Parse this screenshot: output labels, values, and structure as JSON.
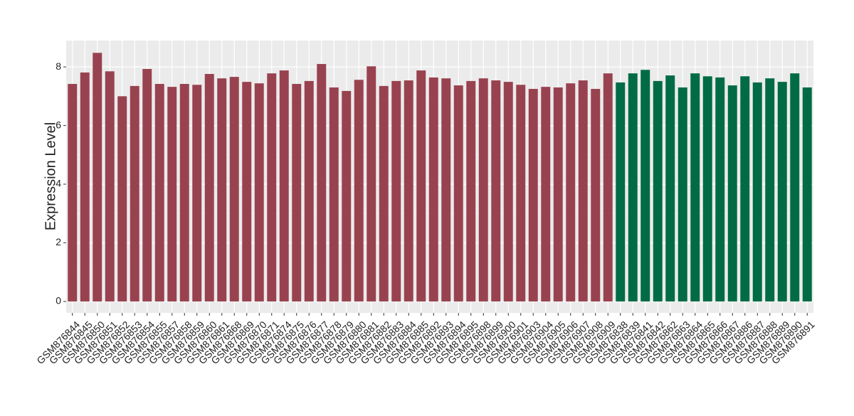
{
  "chart_data": {
    "type": "bar",
    "y_label": "Expression Level",
    "categories": [
      "GSM876844",
      "GSM876845",
      "GSM876850",
      "GSM876851",
      "GSM876852",
      "GSM876853",
      "GSM876854",
      "GSM876855",
      "GSM876857",
      "GSM876858",
      "GSM876859",
      "GSM876860",
      "GSM876861",
      "GSM876868",
      "GSM876869",
      "GSM876870",
      "GSM876871",
      "GSM876874",
      "GSM876875",
      "GSM876876",
      "GSM876877",
      "GSM876878",
      "GSM876879",
      "GSM876880",
      "GSM876881",
      "GSM876882",
      "GSM876883",
      "GSM876884",
      "GSM876885",
      "GSM876892",
      "GSM876893",
      "GSM876894",
      "GSM876895",
      "GSM876898",
      "GSM876899",
      "GSM876900",
      "GSM876901",
      "GSM876903",
      "GSM876904",
      "GSM876905",
      "GSM876906",
      "GSM876907",
      "GSM876908",
      "GSM876909",
      "GSM876838",
      "GSM876839",
      "GSM876841",
      "GSM876842",
      "GSM876862",
      "GSM876863",
      "GSM876864",
      "GSM876865",
      "GSM876866",
      "GSM876867",
      "GSM876886",
      "GSM876887",
      "GSM876888",
      "GSM876889",
      "GSM876890",
      "GSM876891"
    ],
    "values": [
      7.42,
      7.81,
      8.48,
      7.85,
      7.0,
      7.35,
      7.93,
      7.42,
      7.32,
      7.42,
      7.39,
      7.76,
      7.61,
      7.66,
      7.49,
      7.44,
      7.78,
      7.88,
      7.42,
      7.52,
      8.1,
      7.3,
      7.18,
      7.56,
      8.02,
      7.35,
      7.52,
      7.54,
      7.88,
      7.64,
      7.61,
      7.37,
      7.52,
      7.61,
      7.54,
      7.49,
      7.39,
      7.25,
      7.32,
      7.3,
      7.44,
      7.54,
      7.25,
      7.78,
      7.47,
      7.78,
      7.9,
      7.52,
      7.71,
      7.3,
      7.78,
      7.68,
      7.64,
      7.37,
      7.68,
      7.47,
      7.61,
      7.49,
      7.78,
      7.3
    ],
    "colors": [
      "#99424f",
      "#99424f",
      "#99424f",
      "#99424f",
      "#99424f",
      "#99424f",
      "#99424f",
      "#99424f",
      "#99424f",
      "#99424f",
      "#99424f",
      "#99424f",
      "#99424f",
      "#99424f",
      "#99424f",
      "#99424f",
      "#99424f",
      "#99424f",
      "#99424f",
      "#99424f",
      "#99424f",
      "#99424f",
      "#99424f",
      "#99424f",
      "#99424f",
      "#99424f",
      "#99424f",
      "#99424f",
      "#99424f",
      "#99424f",
      "#99424f",
      "#99424f",
      "#99424f",
      "#99424f",
      "#99424f",
      "#99424f",
      "#99424f",
      "#99424f",
      "#99424f",
      "#99424f",
      "#99424f",
      "#99424f",
      "#99424f",
      "#99424f",
      "#006b45",
      "#006b45",
      "#006b45",
      "#006b45",
      "#006b45",
      "#006b45",
      "#006b45",
      "#006b45",
      "#006b45",
      "#006b45",
      "#006b45",
      "#006b45",
      "#006b45",
      "#006b45",
      "#006b45",
      "#006b45"
    ],
    "ylim": [
      -0.39,
      8.9
    ],
    "yticks": [
      0,
      2,
      4,
      6,
      8
    ],
    "grid": true
  }
}
